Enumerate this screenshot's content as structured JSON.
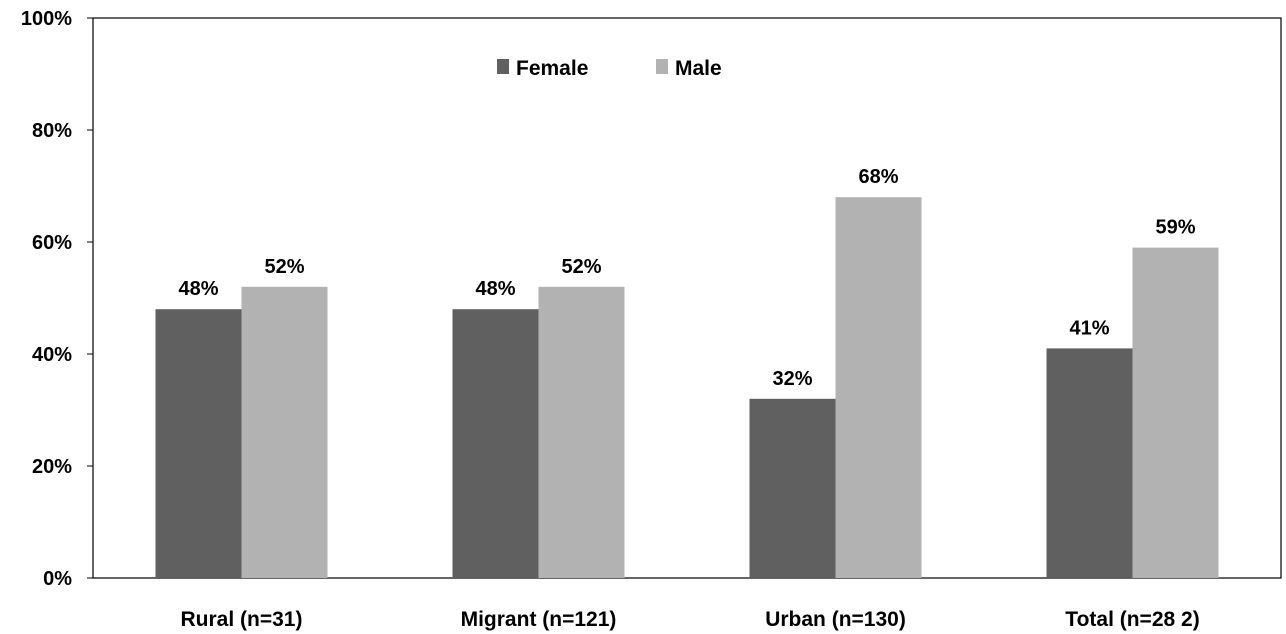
{
  "chart_data": {
    "type": "bar",
    "categories": [
      "Rural (n=31)",
      "Migrant (n=121)",
      "Urban (n=130)",
      "Total (n=28 2)"
    ],
    "series": [
      {
        "name": "Female",
        "color": "#606060",
        "values": [
          48,
          48,
          32,
          41
        ],
        "labels": [
          "48%",
          "48%",
          "32%",
          "41%"
        ]
      },
      {
        "name": "Male",
        "color": "#b2b2b2",
        "values": [
          52,
          52,
          68,
          59
        ],
        "labels": [
          "52%",
          "52%",
          "68%",
          "59%"
        ]
      }
    ],
    "ylim": [
      0,
      100
    ],
    "yticks": [
      "0%",
      "20%",
      "40%",
      "60%",
      "80%",
      "100%"
    ],
    "ytick_values": [
      0,
      20,
      40,
      60,
      80,
      100
    ],
    "legend_position": "top-center",
    "grid": false
  }
}
